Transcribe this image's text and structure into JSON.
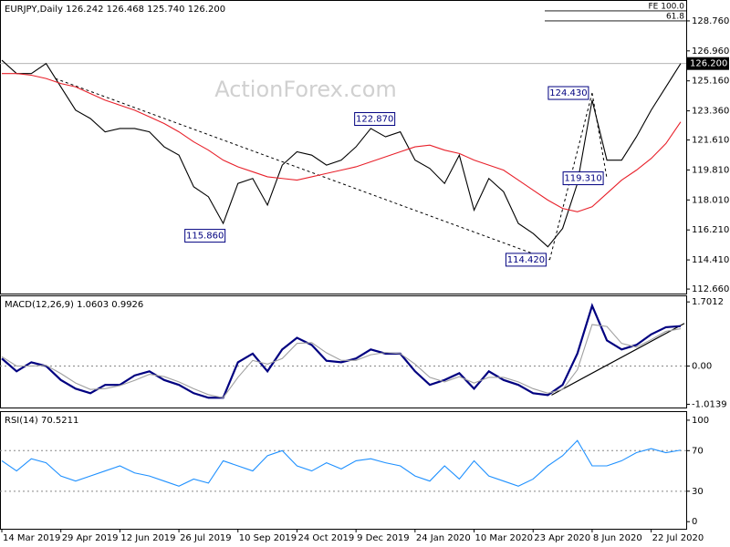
{
  "chart_data": [
    {
      "type": "line",
      "title": "EURJPY,Daily  126.242 126.468 125.740 126.200",
      "watermark": "ActionForex.com",
      "x": [
        0,
        8,
        16,
        24,
        32,
        40,
        48,
        56,
        64,
        72,
        80,
        88,
        96,
        104,
        112,
        120,
        128,
        136,
        144,
        152,
        160,
        168,
        176,
        184,
        192,
        200,
        208,
        216,
        224,
        232,
        240,
        248,
        256,
        264,
        272,
        280,
        288,
        296,
        304,
        312,
        320,
        328,
        336,
        344,
        352,
        360,
        368
      ],
      "xlim": [
        0,
        370
      ],
      "ylim": [
        112.39,
        129.96
      ],
      "yticks": [
        {
          "value": 128.76,
          "label": "128.760"
        },
        {
          "value": 126.96,
          "label": "126.960"
        },
        {
          "value": 125.16,
          "label": "125.160"
        },
        {
          "value": 123.36,
          "label": "123.360"
        },
        {
          "value": 121.61,
          "label": "121.610"
        },
        {
          "value": 119.81,
          "label": "119.810"
        },
        {
          "value": 118.01,
          "label": "118.010"
        },
        {
          "value": 116.21,
          "label": "116.210"
        },
        {
          "value": 114.41,
          "label": "114.410"
        },
        {
          "value": 112.66,
          "label": "112.660"
        }
      ],
      "series": [
        {
          "color": "#000000",
          "values": [
            126.4,
            125.6,
            125.6,
            126.2,
            124.8,
            123.4,
            122.9,
            122.1,
            122.3,
            122.3,
            122.1,
            121.2,
            120.7,
            118.8,
            118.2,
            116.6,
            119.0,
            119.3,
            117.7,
            120.1,
            120.9,
            120.7,
            120.1,
            120.4,
            121.2,
            122.3,
            121.8,
            122.1,
            120.4,
            119.9,
            119.0,
            120.7,
            117.4,
            119.3,
            118.5,
            116.6,
            116.0,
            115.2,
            116.3,
            119.0,
            124.0,
            120.4,
            120.4,
            121.8,
            123.4,
            124.8,
            126.2
          ]
        },
        {
          "color": "#e8202a",
          "values": [
            125.6,
            125.6,
            125.5,
            125.3,
            125.0,
            124.8,
            124.4,
            124.0,
            123.7,
            123.4,
            123.0,
            122.6,
            122.1,
            121.5,
            121.0,
            120.4,
            120.0,
            119.7,
            119.4,
            119.3,
            119.2,
            119.4,
            119.6,
            119.8,
            120.0,
            120.3,
            120.6,
            120.9,
            121.2,
            121.3,
            121.0,
            120.8,
            120.4,
            120.1,
            119.8,
            119.2,
            118.6,
            118.0,
            117.5,
            117.3,
            117.6,
            118.4,
            119.2,
            119.8,
            120.5,
            121.4,
            122.7
          ]
        }
      ],
      "annotations": [
        {
          "x": 123,
          "y": 115.86,
          "label": "115.860"
        },
        {
          "x": 215,
          "y": 122.87,
          "label": "122.870"
        },
        {
          "x": 320,
          "y": 124.43,
          "label": "124.430"
        },
        {
          "x": 328,
          "y": 119.31,
          "label": "119.310"
        },
        {
          "x": 297,
          "y": 114.42,
          "label": "114.420"
        }
      ],
      "trendlines": [
        [
          {
            "x": 29,
            "y": 125.3
          },
          {
            "x": 297,
            "y": 114.42
          }
        ],
        [
          {
            "x": 297,
            "y": 114.42
          },
          {
            "x": 320,
            "y": 124.43
          }
        ],
        [
          {
            "x": 320,
            "y": 124.43
          },
          {
            "x": 328,
            "y": 119.31
          }
        ]
      ],
      "fe_levels": [
        {
          "value": 129.36,
          "label": "FE 100.0"
        },
        {
          "value": 128.76,
          "label": "61.8"
        }
      ],
      "price_tag": {
        "value": 126.2,
        "label": "126.200"
      }
    },
    {
      "type": "line",
      "title": "MACD(12,26,9) 1.0603 0.9926",
      "x": [
        0,
        8,
        16,
        24,
        32,
        40,
        48,
        56,
        64,
        72,
        80,
        88,
        96,
        104,
        112,
        120,
        128,
        136,
        144,
        152,
        160,
        168,
        176,
        184,
        192,
        200,
        208,
        216,
        224,
        232,
        240,
        248,
        256,
        264,
        272,
        280,
        288,
        296,
        304,
        312,
        320,
        328,
        336,
        344,
        352,
        360,
        368
      ],
      "xlim": [
        0,
        370
      ],
      "ylim": [
        -1.1,
        1.85
      ],
      "yticks": [
        {
          "value": 1.7012,
          "label": "1.7012"
        },
        {
          "value": 0,
          "label": "0.00"
        },
        {
          "value": -1.0139,
          "label": "-1.0139"
        }
      ],
      "levels": [
        0
      ],
      "series": [
        {
          "color": "#000080",
          "values": [
            0.2,
            -0.14,
            0.1,
            0,
            -0.37,
            -0.6,
            -0.72,
            -0.5,
            -0.5,
            -0.25,
            -0.14,
            -0.37,
            -0.5,
            -0.72,
            -0.84,
            -0.84,
            0.1,
            0.33,
            -0.14,
            0.44,
            0.75,
            0.56,
            0.14,
            0.1,
            0.2,
            0.44,
            0.33,
            0.33,
            -0.14,
            -0.5,
            -0.37,
            -0.19,
            -0.6,
            -0.14,
            -0.37,
            -0.5,
            -0.72,
            -0.77,
            -0.5,
            0.33,
            1.6,
            0.68,
            0.44,
            0.56,
            0.84,
            1.03,
            1.06
          ]
        },
        {
          "color": "#a0a0a0",
          "values": [
            0.25,
            0.0,
            0.0,
            0.02,
            -0.2,
            -0.45,
            -0.62,
            -0.6,
            -0.52,
            -0.38,
            -0.22,
            -0.28,
            -0.42,
            -0.6,
            -0.76,
            -0.84,
            -0.3,
            0.15,
            0.05,
            0.2,
            0.6,
            0.62,
            0.35,
            0.15,
            0.15,
            0.3,
            0.36,
            0.33,
            0.05,
            -0.3,
            -0.42,
            -0.28,
            -0.45,
            -0.3,
            -0.3,
            -0.42,
            -0.6,
            -0.72,
            -0.62,
            -0.1,
            1.1,
            1.05,
            0.6,
            0.5,
            0.7,
            0.92,
            0.99
          ]
        }
      ],
      "trendlines": [
        [
          {
            "x": 298,
            "y": -0.77
          },
          {
            "x": 370,
            "y": 1.13
          }
        ]
      ]
    },
    {
      "type": "line",
      "title": "RSI(14) 70.5211",
      "x": [
        0,
        8,
        16,
        24,
        32,
        40,
        48,
        56,
        64,
        72,
        80,
        88,
        96,
        104,
        112,
        120,
        128,
        136,
        144,
        152,
        160,
        168,
        176,
        184,
        192,
        200,
        208,
        216,
        224,
        232,
        240,
        248,
        256,
        264,
        272,
        280,
        288,
        296,
        304,
        312,
        320,
        328,
        336,
        344,
        352,
        360,
        368
      ],
      "xlim": [
        0,
        370
      ],
      "ylim": [
        -7,
        108
      ],
      "yticks": [
        100,
        70,
        30,
        0
      ],
      "levels": [
        70,
        30
      ],
      "series": [
        {
          "color": "#1e90ff",
          "values": [
            60,
            50,
            62,
            58,
            45,
            40,
            45,
            50,
            55,
            48,
            45,
            40,
            35,
            42,
            38,
            60,
            55,
            50,
            65,
            70,
            55,
            50,
            58,
            52,
            60,
            62,
            58,
            55,
            45,
            40,
            55,
            42,
            60,
            45,
            40,
            35,
            42,
            55,
            65,
            80,
            55,
            55,
            60,
            68,
            72,
            68,
            70.5
          ]
        }
      ],
      "xticks": [
        {
          "value": 0,
          "label": "14 Mar 2019"
        },
        {
          "value": 32,
          "label": "29 Apr 2019"
        },
        {
          "value": 64,
          "label": "12 Jun 2019"
        },
        {
          "value": 96,
          "label": "26 Jul 2019"
        },
        {
          "value": 128,
          "label": "10 Sep 2019"
        },
        {
          "value": 160,
          "label": "24 Oct 2019"
        },
        {
          "value": 192,
          "label": "9 Dec 2019"
        },
        {
          "value": 224,
          "label": "24 Jan 2020"
        },
        {
          "value": 256,
          "label": "10 Mar 2020"
        },
        {
          "value": 288,
          "label": "23 Apr 2020"
        },
        {
          "value": 320,
          "label": "8 Jun 2020"
        },
        {
          "value": 352,
          "label": "22 Jul 2020"
        }
      ]
    }
  ]
}
